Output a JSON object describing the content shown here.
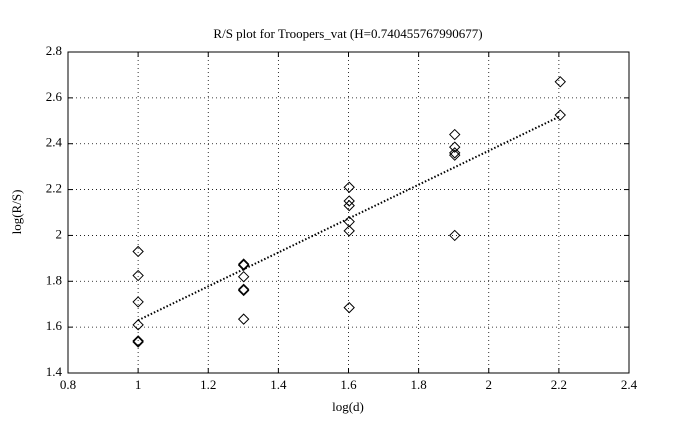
{
  "chart_data": {
    "type": "scatter",
    "title": "R/S plot for Troopers_vat (H=0.740455767990677)",
    "x_label": "log(d)",
    "y_label": "log(R/S)",
    "series": [
      {
        "mode": "markers",
        "marker": "diamond",
        "color": "#000000",
        "x": [
          1,
          1,
          1,
          1,
          1,
          1,
          1.301,
          1.301,
          1.301,
          1.301,
          1.301,
          1.301,
          1.602,
          1.602,
          1.602,
          1.602,
          1.602,
          1.602,
          1.903,
          1.903,
          1.903,
          1.903,
          1.903,
          2.204,
          2.204
        ],
        "values": [
          1.93,
          1.825,
          1.71,
          1.61,
          1.54,
          1.535,
          1.875,
          1.87,
          1.82,
          1.765,
          1.76,
          1.635,
          2.21,
          2.15,
          2.13,
          2.06,
          2.02,
          1.685,
          2.44,
          2.385,
          2.36,
          2.35,
          2.0,
          2.67,
          2.525
        ]
      },
      {
        "mode": "line",
        "line_style": "dotted",
        "color": "#000000",
        "x": [
          1,
          2.204
        ],
        "values": [
          1.63,
          2.52
        ]
      }
    ],
    "xlim": [
      0.8,
      2.4
    ],
    "xticks": [
      0.8,
      1,
      1.2,
      1.4,
      1.6,
      1.8,
      2,
      2.2,
      2.4
    ],
    "ylim": [
      1.4,
      2.8
    ],
    "yticks": [
      1.4,
      1.6,
      1.8,
      2,
      2.2,
      2.4,
      2.6,
      2.8
    ],
    "grid": true
  }
}
